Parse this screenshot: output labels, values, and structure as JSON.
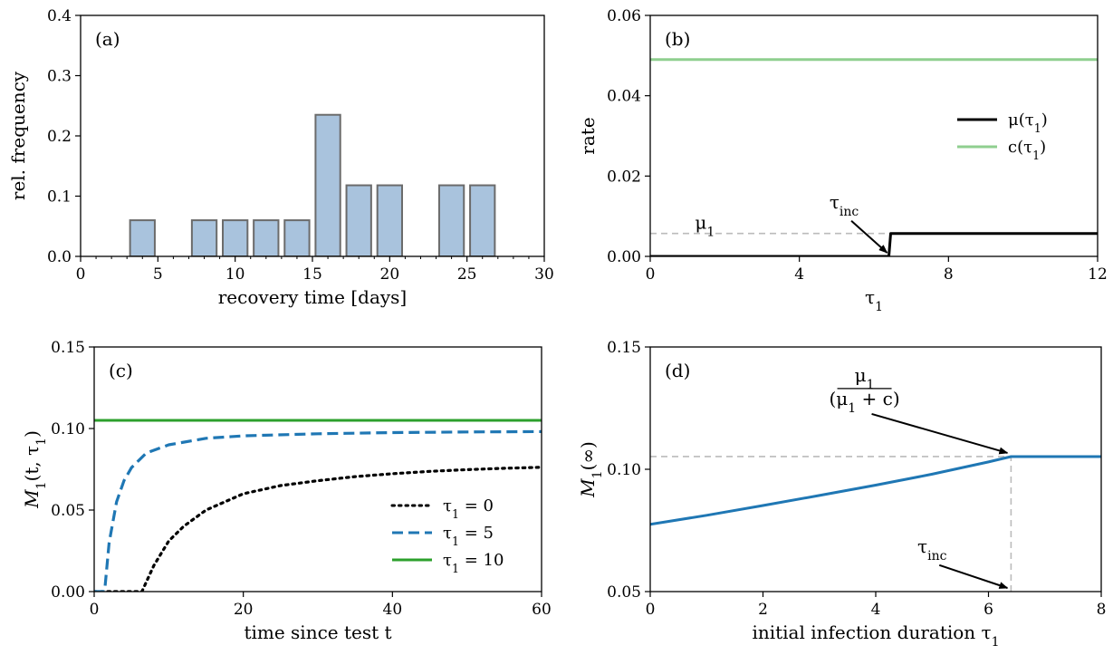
{
  "chart_data": [
    {
      "panel": "(a)",
      "type": "bar",
      "title": "",
      "xlabel": "recovery time [days]",
      "ylabel": "rel. frequency",
      "xlim": [
        0,
        30
      ],
      "ylim": [
        0,
        0.4
      ],
      "xticks": [
        0,
        5,
        10,
        15,
        20,
        25,
        30
      ],
      "yticks": [
        0.0,
        0.1,
        0.2,
        0.3,
        0.4
      ],
      "bar_width": 1.6,
      "x": [
        4,
        8,
        10,
        12,
        14,
        16,
        18,
        20,
        24,
        26
      ],
      "values": [
        0.06,
        0.06,
        0.06,
        0.06,
        0.06,
        0.235,
        0.118,
        0.118,
        0.118,
        0.118
      ],
      "colors": {
        "bar_fill": "#a9c3dd",
        "bar_edge": "#6b6b6b"
      },
      "grid": false
    },
    {
      "panel": "(b)",
      "type": "line",
      "title": "",
      "xlabel": "τ1",
      "ylabel": "rate",
      "xlim": [
        0,
        12
      ],
      "ylim": [
        0,
        0.06
      ],
      "xticks": [
        0,
        4,
        8,
        12
      ],
      "yticks": [
        0.0,
        0.02,
        0.04,
        0.06
      ],
      "legend_position": "center-right",
      "series": [
        {
          "name": "μ(τ1)",
          "color": "#000000",
          "style": "solid",
          "x": [
            0,
            6.4,
            6.45,
            12
          ],
          "y": [
            0,
            0,
            0.0057,
            0.0057
          ]
        },
        {
          "name": "c(τ1)",
          "color": "#8fcf8f",
          "style": "solid",
          "x": [
            0,
            12
          ],
          "y": [
            0.049,
            0.049
          ]
        }
      ],
      "reference_lines": [
        {
          "label": "μ1",
          "orientation": "horizontal",
          "y": 0.0057,
          "x_range": [
            0,
            6.4
          ],
          "color": "#bbbbbb",
          "style": "dashed"
        }
      ],
      "annotations": [
        {
          "text": "τinc",
          "text_at": [
            5.2,
            0.012
          ],
          "arrow_to": [
            6.45,
            0
          ]
        }
      ],
      "grid": false
    },
    {
      "panel": "(c)",
      "type": "line",
      "title": "",
      "xlabel": "time since test t",
      "ylabel": "M1(t, τ1)",
      "xlim": [
        0,
        60
      ],
      "ylim": [
        0,
        0.15
      ],
      "xticks": [
        0,
        20,
        40,
        60
      ],
      "yticks": [
        0.0,
        0.05,
        0.1,
        0.15
      ],
      "legend_position": "lower-right",
      "series": [
        {
          "name": "τ1 = 0",
          "color": "#000000",
          "style": "dotted",
          "x": [
            0,
            5,
            6.4,
            8,
            10,
            12,
            15,
            20,
            25,
            30,
            35,
            40,
            45,
            50,
            55,
            60
          ],
          "y": [
            0,
            0,
            0,
            0.016,
            0.031,
            0.04,
            0.05,
            0.06,
            0.065,
            0.068,
            0.0705,
            0.0723,
            0.0737,
            0.0748,
            0.0756,
            0.0762
          ]
        },
        {
          "name": "τ1 = 5",
          "color": "#1f77b4",
          "style": "dashed",
          "x": [
            0,
            1,
            1.4,
            2,
            3,
            4,
            5,
            7,
            10,
            15,
            20,
            30,
            40,
            50,
            60
          ],
          "y": [
            0,
            0,
            0,
            0.03,
            0.055,
            0.068,
            0.076,
            0.085,
            0.09,
            0.094,
            0.0955,
            0.0968,
            0.0975,
            0.0979,
            0.0981
          ]
        },
        {
          "name": "τ1 = 10",
          "color": "#2ca02c",
          "style": "solid",
          "x": [
            0,
            60
          ],
          "y": [
            0.105,
            0.105
          ]
        }
      ],
      "grid": false
    },
    {
      "panel": "(d)",
      "type": "line",
      "title": "",
      "xlabel": "initial infection duration τ1",
      "ylabel": "M1(∞)",
      "xlim": [
        0,
        8
      ],
      "ylim": [
        0.05,
        0.15
      ],
      "xticks": [
        0,
        2,
        4,
        6,
        8
      ],
      "yticks": [
        0.05,
        0.1,
        0.15
      ],
      "series": [
        {
          "name": "",
          "color": "#1f77b4",
          "style": "solid",
          "x": [
            0,
            1,
            2,
            3,
            4,
            5,
            6,
            6.4,
            7,
            8
          ],
          "y": [
            0.0775,
            0.0812,
            0.0852,
            0.0893,
            0.0935,
            0.098,
            0.103,
            0.1052,
            0.1052,
            0.1052
          ]
        }
      ],
      "reference_lines": [
        {
          "orientation": "horizontal",
          "y": 0.1052,
          "x_range": [
            0,
            6.4
          ],
          "color": "#bbbbbb",
          "style": "dashed"
        },
        {
          "orientation": "vertical",
          "x": 6.4,
          "y_range": [
            0.05,
            0.1052
          ],
          "color": "#bbbbbb",
          "style": "dashed"
        }
      ],
      "annotations": [
        {
          "text": "μ1 / (μ1 + c)",
          "text_at": [
            3.8,
            0.133
          ],
          "arrow_to": [
            6.4,
            0.1052
          ]
        },
        {
          "text": "τinc",
          "text_at": [
            5.0,
            0.066
          ],
          "arrow_to": [
            6.4,
            0.05
          ]
        }
      ],
      "grid": false
    }
  ]
}
